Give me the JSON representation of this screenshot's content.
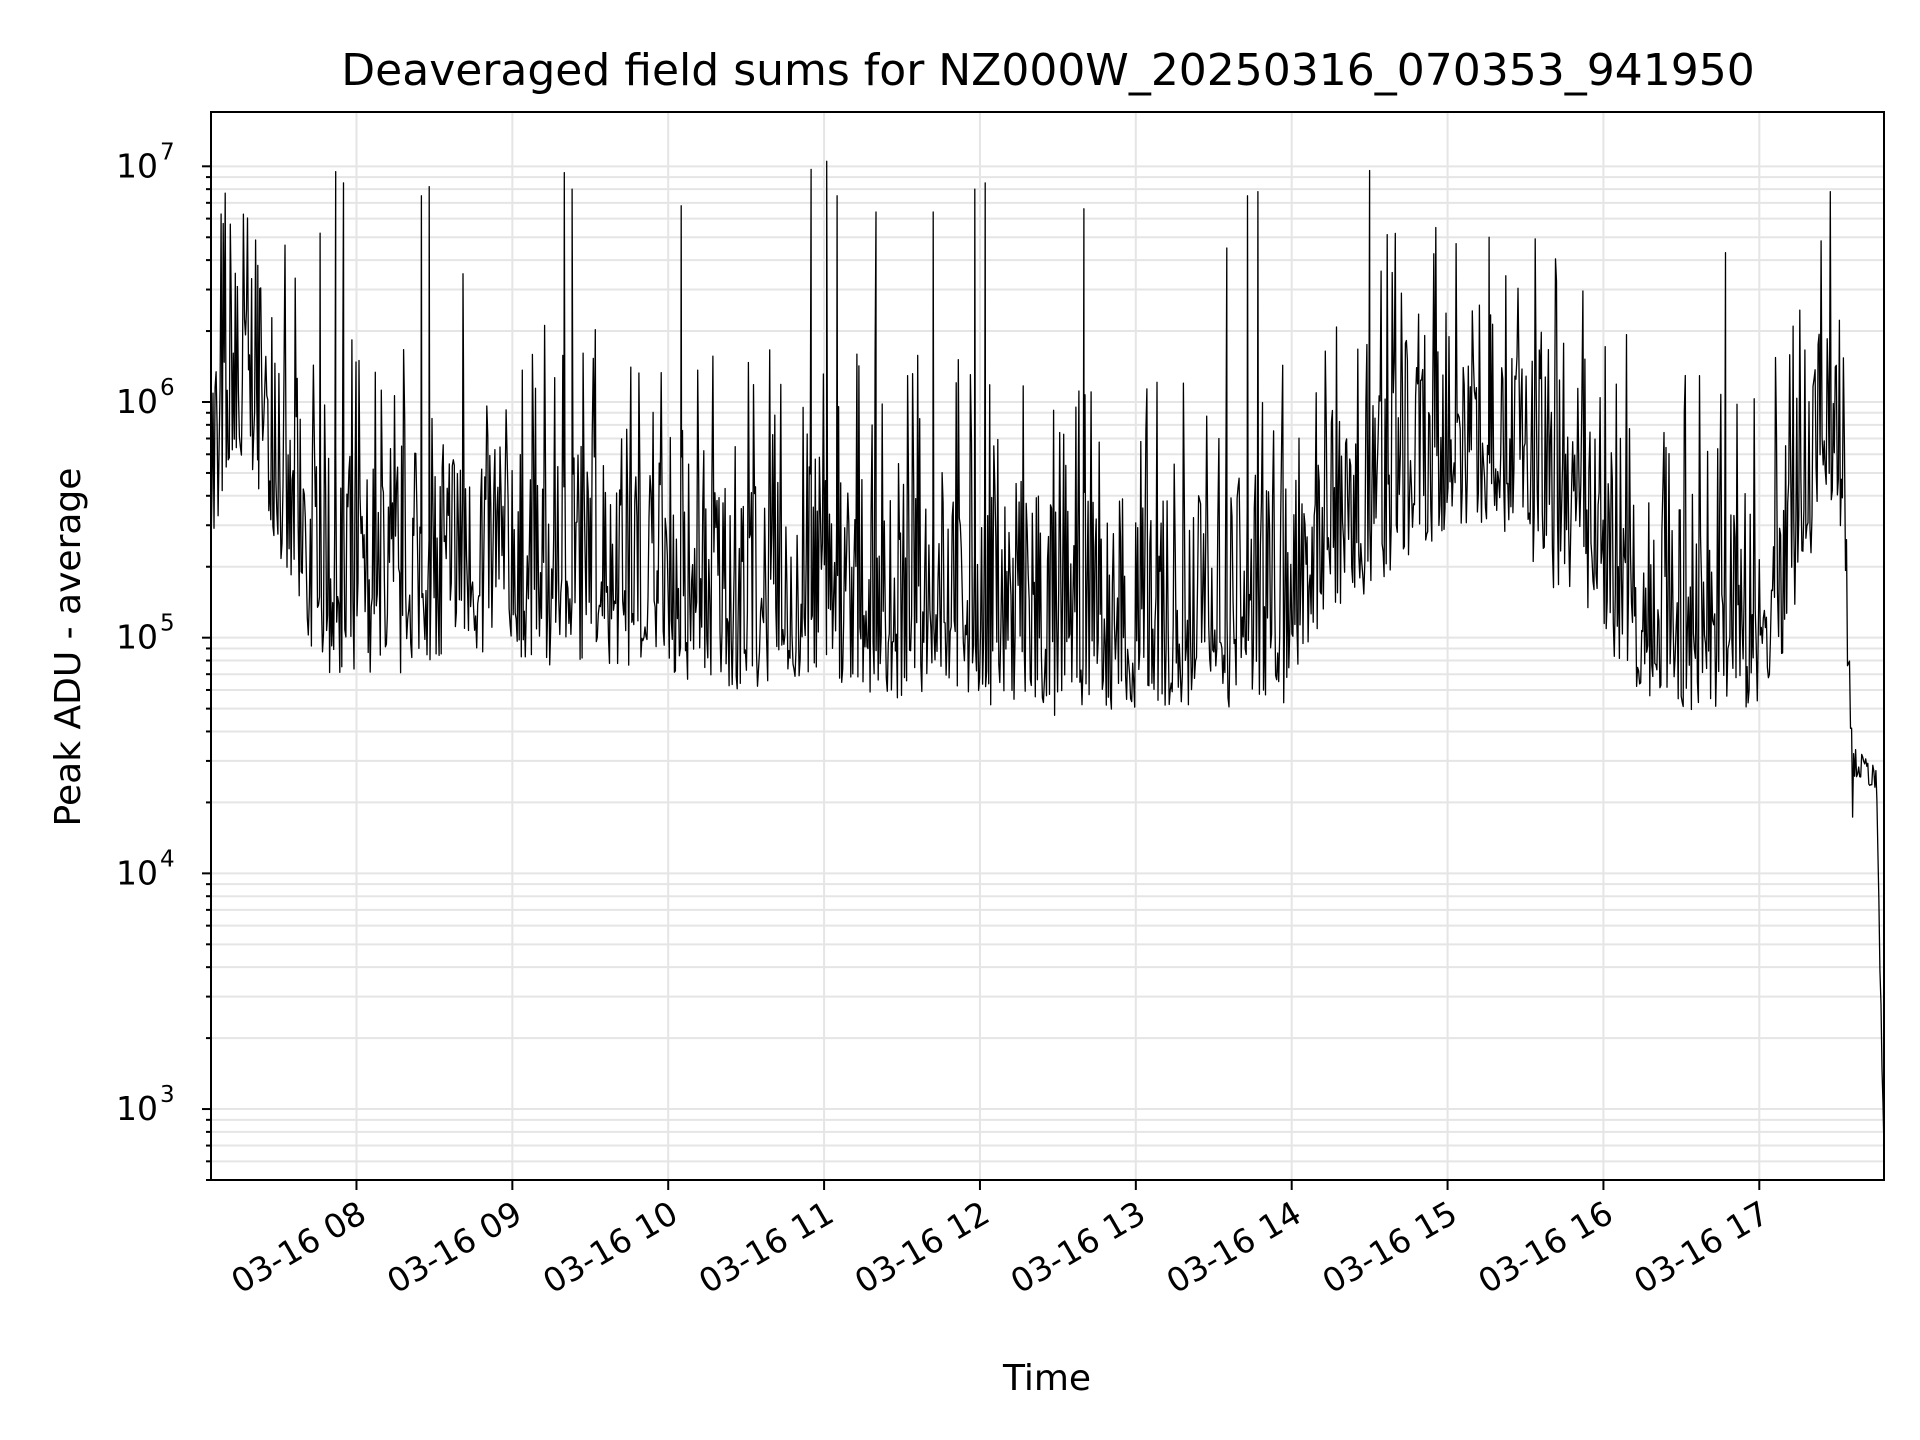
{
  "chart_data": {
    "type": "line",
    "title": "Deaveraged field sums for NZ000W_20250316_070353_941950",
    "xlabel": "Time",
    "ylabel": "Peak ADU - average",
    "yscale": "log",
    "ylim": [
      500,
      17000000
    ],
    "xlim": [
      "03-16 07:04",
      "03-16 17:48"
    ],
    "grid": true,
    "legend": "none",
    "line_color": "#000000",
    "x_ticks": [
      "03-16 08",
      "03-16 09",
      "03-16 10",
      "03-16 11",
      "03-16 12",
      "03-16 13",
      "03-16 14",
      "03-16 15",
      "03-16 16",
      "03-16 17"
    ],
    "y_ticks": [
      {
        "base": "10",
        "exp": "3",
        "value": 1000
      },
      {
        "base": "10",
        "exp": "4",
        "value": 10000
      },
      {
        "base": "10",
        "exp": "5",
        "value": 100000
      },
      {
        "base": "10",
        "exp": "6",
        "value": 1000000
      },
      {
        "base": "10",
        "exp": "7",
        "value": 10000000
      }
    ],
    "series": [
      {
        "x": [
          "03-16 07:04",
          "03-16 07:10",
          "03-16 07:15",
          "03-16 07:20",
          "03-16 07:25",
          "03-16 07:30",
          "03-16 07:35",
          "03-16 07:40",
          "03-16 07:45",
          "03-16 07:50",
          "03-16 08:00",
          "03-16 08:15",
          "03-16 08:30",
          "03-16 08:45",
          "03-16 09:00",
          "03-16 09:15",
          "03-16 09:30",
          "03-16 09:45",
          "03-16 10:00",
          "03-16 10:15",
          "03-16 10:30",
          "03-16 10:45",
          "03-16 11:00",
          "03-16 11:15",
          "03-16 11:30",
          "03-16 11:45",
          "03-16 12:00",
          "03-16 12:15",
          "03-16 12:30",
          "03-16 12:45",
          "03-16 13:00",
          "03-16 13:15",
          "03-16 13:30",
          "03-16 13:45",
          "03-16 14:00",
          "03-16 14:15",
          "03-16 14:30",
          "03-16 14:45",
          "03-16 15:00",
          "03-16 15:15",
          "03-16 15:30",
          "03-16 15:45",
          "03-16 16:00",
          "03-16 16:15",
          "03-16 16:30",
          "03-16 16:45",
          "03-16 17:00",
          "03-16 17:10",
          "03-16 17:20",
          "03-16 17:25",
          "03-16 17:30",
          "03-16 17:33",
          "03-16 17:36",
          "03-16 17:40",
          "03-16 17:45",
          "03-16 17:48"
        ],
        "y": [
          500000,
          700000,
          900000,
          1000000,
          800000,
          500000,
          300000,
          200000,
          150000,
          150000,
          150000,
          150000,
          170000,
          180000,
          160000,
          170000,
          180000,
          160000,
          140000,
          150000,
          130000,
          140000,
          150000,
          130000,
          120000,
          140000,
          110000,
          120000,
          100000,
          110000,
          100000,
          110000,
          100000,
          110000,
          120000,
          300000,
          350000,
          500000,
          600000,
          700000,
          500000,
          300000,
          200000,
          130000,
          110000,
          100000,
          110000,
          200000,
          500000,
          900000,
          800000,
          300000,
          30000,
          28000,
          25000,
          600
        ],
        "spikes": [
          {
            "x": "03-16 07:22",
            "y": 3800000
          },
          {
            "x": "03-16 07:46",
            "y": 5200000
          },
          {
            "x": "03-16 07:52",
            "y": 9500000
          },
          {
            "x": "03-16 07:55",
            "y": 8500000
          },
          {
            "x": "03-16 08:25",
            "y": 7500000
          },
          {
            "x": "03-16 08:28",
            "y": 8200000
          },
          {
            "x": "03-16 08:41",
            "y": 3500000
          },
          {
            "x": "03-16 09:20",
            "y": 9400000
          },
          {
            "x": "03-16 09:23",
            "y": 8000000
          },
          {
            "x": "03-16 10:05",
            "y": 6800000
          },
          {
            "x": "03-16 10:55",
            "y": 9700000
          },
          {
            "x": "03-16 11:01",
            "y": 10500000
          },
          {
            "x": "03-16 11:05",
            "y": 7500000
          },
          {
            "x": "03-16 11:20",
            "y": 6400000
          },
          {
            "x": "03-16 11:42",
            "y": 6400000
          },
          {
            "x": "03-16 11:58",
            "y": 8000000
          },
          {
            "x": "03-16 12:02",
            "y": 8500000
          },
          {
            "x": "03-16 12:40",
            "y": 6600000
          },
          {
            "x": "03-16 13:35",
            "y": 4500000
          },
          {
            "x": "03-16 13:43",
            "y": 7500000
          },
          {
            "x": "03-16 13:47",
            "y": 7800000
          },
          {
            "x": "03-16 14:30",
            "y": 9600000
          },
          {
            "x": "03-16 15:16",
            "y": 5000000
          },
          {
            "x": "03-16 16:47",
            "y": 4300000
          },
          {
            "x": "03-16 17:13",
            "y": 2100000
          }
        ]
      }
    ]
  }
}
